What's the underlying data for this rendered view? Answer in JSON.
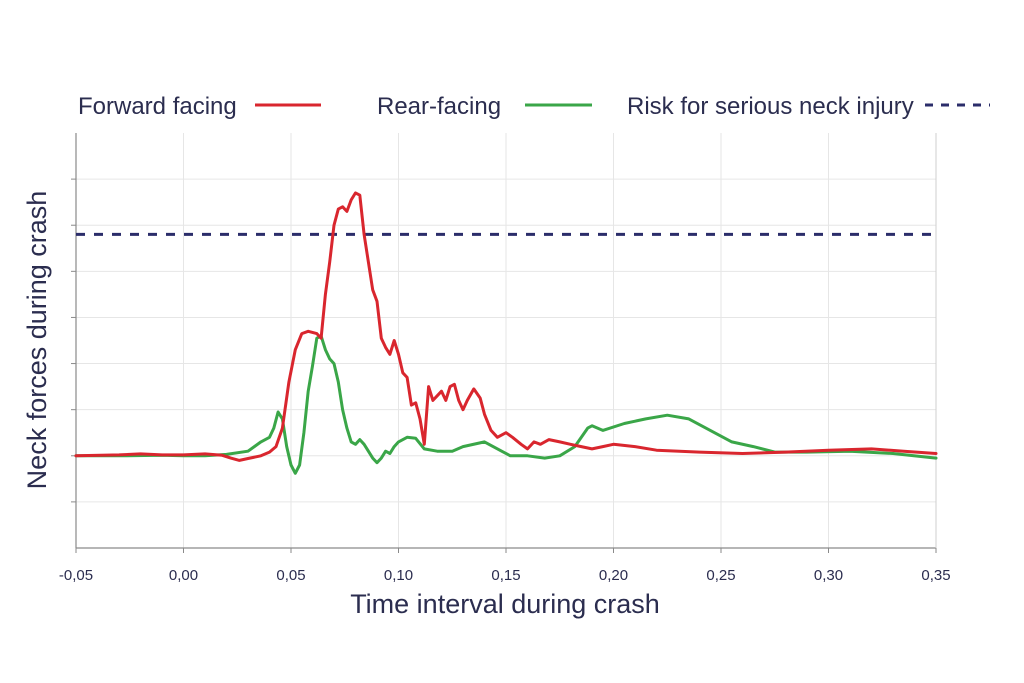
{
  "chart_data": {
    "type": "line",
    "title": "",
    "xlabel": "Time interval during crash",
    "ylabel": "Neck forces during crash",
    "xlim": [
      -0.05,
      0.35
    ],
    "ylim": [
      -2,
      7
    ],
    "x_ticks": [
      "-0,05",
      "0,00",
      "0,05",
      "0,10",
      "0,15",
      "0,20",
      "0,25",
      "0,30",
      "0,35"
    ],
    "x_tick_values": [
      -0.05,
      0.0,
      0.05,
      0.1,
      0.15,
      0.2,
      0.25,
      0.3,
      0.35
    ],
    "y_gridlines": [
      -1,
      0,
      1,
      2,
      3,
      4,
      5,
      6
    ],
    "y_tick_labels_shown": false,
    "grid": true,
    "legend_position": "top",
    "legend": [
      {
        "label": "Forward facing",
        "series": "forward"
      },
      {
        "label": "Rear-facing",
        "series": "rear"
      },
      {
        "label": "Risk for serious neck injury",
        "series": "risk"
      }
    ],
    "series": [
      {
        "id": "forward",
        "name": "Forward facing",
        "color": "#d9262e",
        "style": "solid",
        "points": [
          [
            -0.05,
            0.0
          ],
          [
            -0.03,
            0.02
          ],
          [
            -0.02,
            0.04
          ],
          [
            -0.01,
            0.02
          ],
          [
            0.0,
            0.02
          ],
          [
            0.01,
            0.04
          ],
          [
            0.018,
            0.01
          ],
          [
            0.022,
            -0.05
          ],
          [
            0.026,
            -0.1
          ],
          [
            0.03,
            -0.06
          ],
          [
            0.036,
            0.0
          ],
          [
            0.04,
            0.08
          ],
          [
            0.043,
            0.2
          ],
          [
            0.046,
            0.6
          ],
          [
            0.049,
            1.6
          ],
          [
            0.052,
            2.3
          ],
          [
            0.055,
            2.65
          ],
          [
            0.058,
            2.7
          ],
          [
            0.062,
            2.65
          ],
          [
            0.064,
            2.55
          ],
          [
            0.066,
            3.5
          ],
          [
            0.068,
            4.2
          ],
          [
            0.07,
            5.0
          ],
          [
            0.072,
            5.35
          ],
          [
            0.074,
            5.4
          ],
          [
            0.076,
            5.3
          ],
          [
            0.078,
            5.55
          ],
          [
            0.08,
            5.7
          ],
          [
            0.082,
            5.65
          ],
          [
            0.084,
            4.8
          ],
          [
            0.086,
            4.2
          ],
          [
            0.088,
            3.6
          ],
          [
            0.09,
            3.35
          ],
          [
            0.092,
            2.55
          ],
          [
            0.094,
            2.35
          ],
          [
            0.096,
            2.2
          ],
          [
            0.098,
            2.5
          ],
          [
            0.1,
            2.2
          ],
          [
            0.102,
            1.8
          ],
          [
            0.104,
            1.7
          ],
          [
            0.106,
            1.1
          ],
          [
            0.108,
            1.15
          ],
          [
            0.11,
            0.8
          ],
          [
            0.112,
            0.25
          ],
          [
            0.114,
            1.5
          ],
          [
            0.116,
            1.2
          ],
          [
            0.118,
            1.3
          ],
          [
            0.12,
            1.4
          ],
          [
            0.122,
            1.2
          ],
          [
            0.124,
            1.5
          ],
          [
            0.126,
            1.55
          ],
          [
            0.128,
            1.2
          ],
          [
            0.13,
            1.0
          ],
          [
            0.132,
            1.2
          ],
          [
            0.135,
            1.45
          ],
          [
            0.138,
            1.25
          ],
          [
            0.14,
            0.9
          ],
          [
            0.143,
            0.55
          ],
          [
            0.146,
            0.4
          ],
          [
            0.15,
            0.5
          ],
          [
            0.153,
            0.4
          ],
          [
            0.157,
            0.25
          ],
          [
            0.16,
            0.15
          ],
          [
            0.163,
            0.3
          ],
          [
            0.166,
            0.25
          ],
          [
            0.17,
            0.35
          ],
          [
            0.175,
            0.3
          ],
          [
            0.18,
            0.25
          ],
          [
            0.185,
            0.2
          ],
          [
            0.19,
            0.15
          ],
          [
            0.195,
            0.2
          ],
          [
            0.2,
            0.25
          ],
          [
            0.21,
            0.2
          ],
          [
            0.22,
            0.12
          ],
          [
            0.24,
            0.08
          ],
          [
            0.26,
            0.05
          ],
          [
            0.28,
            0.08
          ],
          [
            0.3,
            0.12
          ],
          [
            0.32,
            0.15
          ],
          [
            0.335,
            0.1
          ],
          [
            0.35,
            0.05
          ]
        ]
      },
      {
        "id": "rear",
        "name": "Rear-facing",
        "color": "#3aa648",
        "style": "solid",
        "points": [
          [
            -0.05,
            0.0
          ],
          [
            -0.03,
            0.0
          ],
          [
            -0.01,
            0.01
          ],
          [
            0.0,
            0.0
          ],
          [
            0.01,
            0.0
          ],
          [
            0.02,
            0.03
          ],
          [
            0.03,
            0.1
          ],
          [
            0.036,
            0.3
          ],
          [
            0.04,
            0.4
          ],
          [
            0.042,
            0.6
          ],
          [
            0.044,
            0.95
          ],
          [
            0.046,
            0.8
          ],
          [
            0.048,
            0.2
          ],
          [
            0.05,
            -0.2
          ],
          [
            0.052,
            -0.38
          ],
          [
            0.054,
            -0.2
          ],
          [
            0.056,
            0.5
          ],
          [
            0.058,
            1.4
          ],
          [
            0.06,
            1.95
          ],
          [
            0.062,
            2.55
          ],
          [
            0.064,
            2.6
          ],
          [
            0.066,
            2.3
          ],
          [
            0.068,
            2.1
          ],
          [
            0.07,
            2.0
          ],
          [
            0.072,
            1.6
          ],
          [
            0.074,
            1.0
          ],
          [
            0.076,
            0.6
          ],
          [
            0.078,
            0.3
          ],
          [
            0.08,
            0.25
          ],
          [
            0.082,
            0.35
          ],
          [
            0.084,
            0.25
          ],
          [
            0.086,
            0.1
          ],
          [
            0.088,
            -0.05
          ],
          [
            0.09,
            -0.15
          ],
          [
            0.092,
            -0.05
          ],
          [
            0.094,
            0.1
          ],
          [
            0.096,
            0.05
          ],
          [
            0.098,
            0.2
          ],
          [
            0.1,
            0.3
          ],
          [
            0.104,
            0.4
          ],
          [
            0.108,
            0.38
          ],
          [
            0.112,
            0.15
          ],
          [
            0.118,
            0.1
          ],
          [
            0.125,
            0.1
          ],
          [
            0.13,
            0.2
          ],
          [
            0.14,
            0.3
          ],
          [
            0.148,
            0.1
          ],
          [
            0.152,
            0.0
          ],
          [
            0.16,
            0.0
          ],
          [
            0.168,
            -0.05
          ],
          [
            0.175,
            0.0
          ],
          [
            0.182,
            0.2
          ],
          [
            0.188,
            0.6
          ],
          [
            0.19,
            0.65
          ],
          [
            0.195,
            0.55
          ],
          [
            0.205,
            0.7
          ],
          [
            0.215,
            0.8
          ],
          [
            0.225,
            0.88
          ],
          [
            0.235,
            0.8
          ],
          [
            0.245,
            0.55
          ],
          [
            0.255,
            0.3
          ],
          [
            0.265,
            0.2
          ],
          [
            0.275,
            0.08
          ],
          [
            0.29,
            0.08
          ],
          [
            0.31,
            0.1
          ],
          [
            0.33,
            0.05
          ],
          [
            0.35,
            -0.05
          ]
        ]
      },
      {
        "id": "risk",
        "name": "Risk for serious neck injury",
        "color": "#2b2d6a",
        "style": "dashed",
        "points": [
          [
            -0.05,
            4.8
          ],
          [
            0.35,
            4.8
          ]
        ]
      }
    ]
  }
}
